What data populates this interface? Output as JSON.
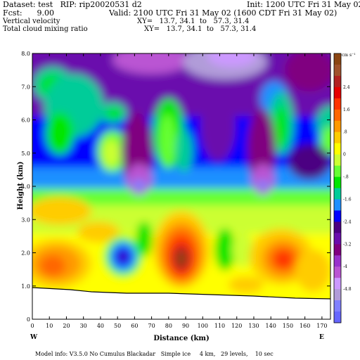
{
  "header": {
    "dataset": "Dataset: test   RIP: rip20020531 d2",
    "init": "Init: 1200 UTC Fri 31 May 02",
    "fcst": "Fcst:      9.00",
    "valid": "Valid: 2100 UTC Fri 31 May 02 (1600 CDT Fri 31 May 02)",
    "field1": "Vertical velocity",
    "xy1": "XY=   13.7, 34.1  to   57.3, 31.4",
    "field2": "Total cloud mixing ratio",
    "xy2": "XY=   13.7, 34.1  to   57.3, 31.4"
  },
  "footer": "Model info: V3.5.0 No Cumulus Blackadar   Simple ice     4 km,   29 levels,    10 sec",
  "colorbar": {
    "unit": "cm s⁻¹",
    "labels": [
      "2.4",
      "1.6",
      ".8",
      "0",
      "-.8",
      "-1.6",
      "-2.4",
      "-3.2",
      "-4",
      "-4.8"
    ],
    "colors": [
      "#8b4513",
      "#a0522d",
      "#b22222",
      "#e60000",
      "#ff3300",
      "#ff6600",
      "#ff9900",
      "#ffcc00",
      "#ffff00",
      "#ccff33",
      "#66ff33",
      "#00e600",
      "#00cc99",
      "#1e90ff",
      "#0000ff",
      "#4b0082",
      "#6a0dad",
      "#800080",
      "#9932cc",
      "#ba55d3",
      "#cc99ff",
      "#b19cd9",
      "#8080ff",
      "#6666ff"
    ]
  },
  "chart_data": {
    "type": "heatmap",
    "title": "Vertical velocity",
    "xlabel": "Distance (km)",
    "ylabel": "Height (km)",
    "x_ticks": [
      0,
      10,
      20,
      30,
      40,
      50,
      60,
      70,
      80,
      90,
      100,
      110,
      120,
      130,
      140,
      150,
      160,
      170
    ],
    "y_ticks": [
      "0",
      "1.0",
      "2.0",
      "3.0",
      "4.0",
      "5.0",
      "6.0",
      "7.0",
      "8.0"
    ],
    "xlim": [
      0,
      175
    ],
    "ylim": [
      0,
      8
    ],
    "x_end_labels": {
      "left": "W",
      "right": "E"
    },
    "units": "cm s-1",
    "value_range": [
      -5.2,
      3.2
    ]
  }
}
